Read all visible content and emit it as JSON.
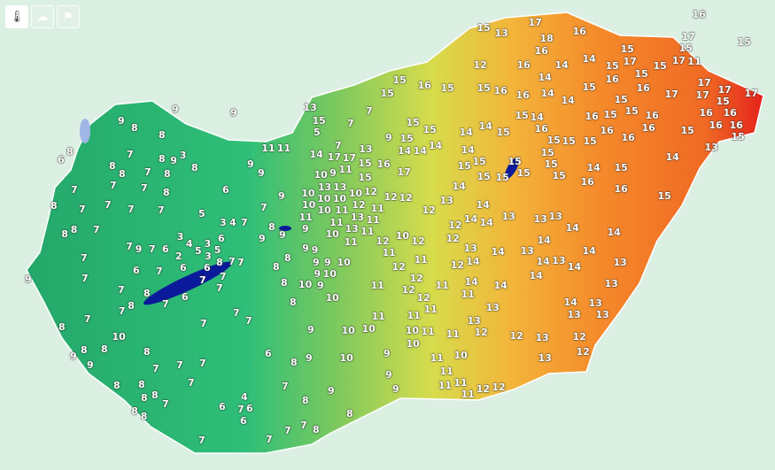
{
  "toolbar": {
    "buttons": [
      {
        "name": "thermometer-icon",
        "active": true
      },
      {
        "name": "cloud-sun-icon",
        "active": false
      },
      {
        "name": "flag-icon",
        "active": false
      }
    ]
  },
  "map": {
    "colors": {
      "background": "#dcefe3",
      "cold": "#1fae6a",
      "mild": "#5cc86a",
      "warm": "#e6df48",
      "hot": "#f58a2a",
      "hottest": "#e5231c",
      "water": "#0b1a9a"
    },
    "labels": [
      9,
      8,
      8,
      9,
      9,
      6,
      8,
      8,
      7,
      8,
      9,
      3,
      8,
      8,
      7,
      8,
      7,
      7,
      7,
      8,
      6,
      9,
      9,
      11,
      11,
      8,
      7,
      7,
      7,
      7,
      5,
      3,
      4,
      7,
      8,
      8,
      7,
      7,
      7,
      6,
      4,
      5,
      3,
      3,
      6,
      5,
      3,
      8,
      7,
      7,
      7,
      9,
      2,
      6,
      6,
      6,
      7,
      7,
      7,
      9,
      7,
      7,
      8,
      6,
      7,
      8,
      7,
      7,
      7,
      7,
      7,
      7,
      8,
      10,
      9,
      8,
      8,
      9,
      8,
      7,
      7,
      7,
      8,
      8,
      7,
      6,
      8,
      7,
      8,
      8,
      8,
      8,
      7,
      6,
      4,
      7,
      6,
      6,
      7,
      7,
      7,
      7,
      8,
      7,
      9,
      8,
      9,
      9,
      9,
      9,
      8,
      8,
      9,
      9,
      9,
      10,
      8,
      10,
      9,
      10,
      9,
      8,
      10,
      9,
      9,
      9,
      8,
      8,
      10,
      10,
      10,
      9,
      9,
      9,
      11,
      11,
      11,
      12,
      11,
      12,
      10,
      12,
      12,
      12,
      11,
      12,
      11,
      11,
      10,
      11,
      10,
      11,
      11,
      10,
      11,
      11,
      11,
      11,
      12,
      12,
      11,
      12,
      12,
      12,
      12,
      12,
      12,
      12,
      12,
      13,
      11,
      11,
      10,
      10,
      10,
      10,
      10,
      11,
      11,
      11,
      13,
      13,
      9,
      11,
      10,
      10,
      10,
      11,
      11,
      13,
      13,
      15,
      15,
      16,
      17,
      15,
      14,
      14,
      14,
      9,
      7,
      7,
      13,
      15,
      5,
      14,
      7,
      17,
      17,
      15,
      15,
      15,
      15,
      16,
      15,
      15,
      13,
      17,
      18,
      16,
      16,
      12,
      16,
      14,
      14,
      14,
      15,
      17,
      15,
      15,
      17,
      17,
      15,
      11,
      16,
      15,
      15,
      16,
      16,
      14,
      14,
      15,
      16,
      15,
      16,
      17,
      17,
      17,
      17,
      15,
      17,
      16,
      16,
      16,
      16,
      15,
      15,
      15,
      15,
      16,
      16,
      16,
      16,
      16,
      15,
      15,
      14,
      16,
      15,
      15,
      14,
      14,
      14,
      15,
      15,
      15,
      15,
      15,
      15,
      15,
      15,
      15,
      15,
      14,
      15,
      16,
      16,
      15,
      14,
      13,
      15,
      14,
      13,
      14,
      13,
      13,
      13,
      14,
      14,
      13,
      14,
      14,
      13,
      14,
      14,
      14,
      14,
      13,
      14,
      14,
      13,
      14,
      14,
      14,
      13,
      13,
      14,
      13,
      13,
      13,
      13,
      12,
      12,
      13,
      12,
      12,
      13
    ]
  }
}
